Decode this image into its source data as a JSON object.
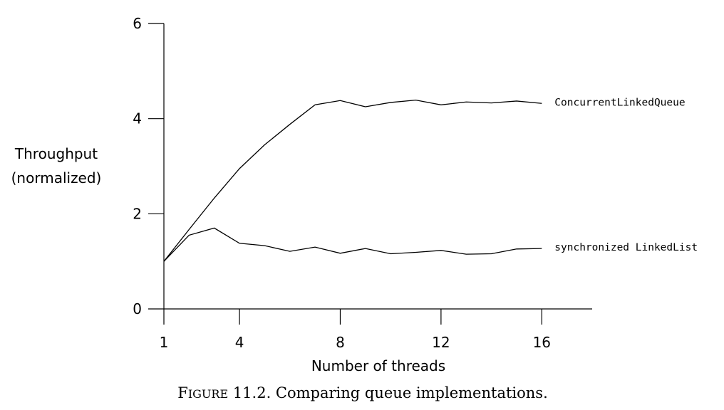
{
  "chart_data": {
    "type": "line",
    "xlabel": "Number of threads",
    "ylabel_lines": [
      "Throughput",
      "(normalized)"
    ],
    "xlim": [
      1,
      18
    ],
    "ylim": [
      0,
      6
    ],
    "x_ticks": [
      1,
      4,
      8,
      12,
      16
    ],
    "y_ticks": [
      0,
      2,
      4,
      6
    ],
    "grid": false,
    "series": [
      {
        "name": "ConcurrentLinkedQueue",
        "x": [
          1,
          2,
          3,
          4,
          5,
          6,
          7,
          8,
          9,
          10,
          11,
          12,
          13,
          14,
          15,
          16
        ],
        "values": [
          1.0,
          1.67,
          2.33,
          2.95,
          3.45,
          3.88,
          4.29,
          4.38,
          4.25,
          4.34,
          4.39,
          4.29,
          4.35,
          4.33,
          4.37,
          4.32
        ]
      },
      {
        "name": "synchronized LinkedList",
        "x": [
          1,
          2,
          3,
          4,
          5,
          6,
          7,
          8,
          9,
          10,
          11,
          12,
          13,
          14,
          15,
          16
        ],
        "values": [
          1.0,
          1.55,
          1.7,
          1.38,
          1.33,
          1.21,
          1.3,
          1.17,
          1.27,
          1.16,
          1.19,
          1.23,
          1.15,
          1.16,
          1.26,
          1.27
        ]
      }
    ]
  },
  "caption": "Figure 11.2. Comparing queue implementations."
}
